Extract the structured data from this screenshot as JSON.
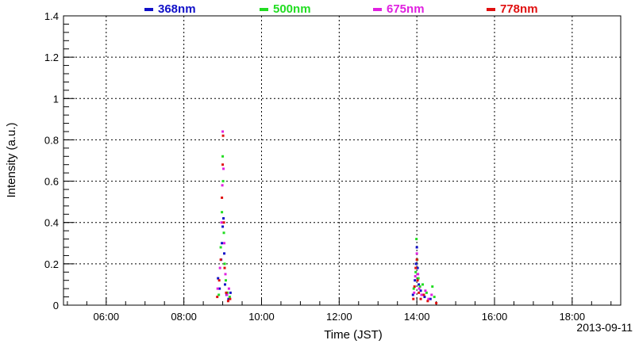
{
  "chart_data": {
    "type": "scatter",
    "title": "",
    "xlabel": "Time (JST)",
    "ylabel": "Intensity (a.u.)",
    "date_label": "2013-09-11",
    "x_unit": "hours (JST clock time)",
    "xlim": [
      4.9,
      19.25
    ],
    "ylim": [
      0,
      1.4
    ],
    "x_ticks": [
      {
        "value": 6,
        "label": "06:00"
      },
      {
        "value": 8,
        "label": "08:00"
      },
      {
        "value": 10,
        "label": "10:00"
      },
      {
        "value": 12,
        "label": "12:00"
      },
      {
        "value": 14,
        "label": "14:00"
      },
      {
        "value": 16,
        "label": "16:00"
      },
      {
        "value": 18,
        "label": "18:00"
      }
    ],
    "y_ticks": [
      {
        "value": 0,
        "label": "0"
      },
      {
        "value": 0.2,
        "label": "0.2"
      },
      {
        "value": 0.4,
        "label": "0.4"
      },
      {
        "value": 0.6,
        "label": "0.6"
      },
      {
        "value": 0.8,
        "label": "0.8"
      },
      {
        "value": 1.0,
        "label": "1"
      },
      {
        "value": 1.2,
        "label": "1.2"
      },
      {
        "value": 1.4,
        "label": "1.4"
      }
    ],
    "grid": true,
    "legend_position": "top",
    "series": [
      {
        "name": "368nm",
        "color": "#1010c8",
        "points": [
          [
            8.88,
            0.13
          ],
          [
            8.92,
            0.08
          ],
          [
            8.96,
            0.22
          ],
          [
            8.98,
            0.3
          ],
          [
            9.0,
            0.38
          ],
          [
            9.02,
            0.42
          ],
          [
            9.04,
            0.25
          ],
          [
            9.06,
            0.1
          ],
          [
            9.1,
            0.05
          ],
          [
            9.15,
            0.03
          ],
          [
            9.2,
            0.06
          ],
          [
            13.9,
            0.05
          ],
          [
            13.95,
            0.12
          ],
          [
            13.98,
            0.2
          ],
          [
            14.0,
            0.28
          ],
          [
            14.02,
            0.18
          ],
          [
            14.05,
            0.1
          ],
          [
            14.1,
            0.07
          ],
          [
            14.2,
            0.04
          ],
          [
            14.35,
            0.03
          ]
        ]
      },
      {
        "name": "500nm",
        "color": "#22dd22",
        "points": [
          [
            8.9,
            0.05
          ],
          [
            8.95,
            0.28
          ],
          [
            8.98,
            0.45
          ],
          [
            9.0,
            0.72
          ],
          [
            9.01,
            0.6
          ],
          [
            9.03,
            0.35
          ],
          [
            9.05,
            0.2
          ],
          [
            9.08,
            0.12
          ],
          [
            9.12,
            0.06
          ],
          [
            9.18,
            0.04
          ],
          [
            13.92,
            0.08
          ],
          [
            13.97,
            0.16
          ],
          [
            13.99,
            0.32
          ],
          [
            14.01,
            0.22
          ],
          [
            14.04,
            0.13
          ],
          [
            14.08,
            0.09
          ],
          [
            14.15,
            0.1
          ],
          [
            14.25,
            0.06
          ],
          [
            14.4,
            0.09
          ],
          [
            14.45,
            0.04
          ]
        ]
      },
      {
        "name": "675nm",
        "color": "#e020e0",
        "points": [
          [
            8.87,
            0.08
          ],
          [
            8.93,
            0.18
          ],
          [
            8.97,
            0.4
          ],
          [
            8.99,
            0.58
          ],
          [
            9.0,
            0.84
          ],
          [
            9.02,
            0.66
          ],
          [
            9.04,
            0.3
          ],
          [
            9.07,
            0.15
          ],
          [
            9.11,
            0.05
          ],
          [
            9.16,
            0.08
          ],
          [
            13.93,
            0.06
          ],
          [
            13.96,
            0.14
          ],
          [
            14.0,
            0.25
          ],
          [
            14.03,
            0.15
          ],
          [
            14.06,
            0.08
          ],
          [
            14.12,
            0.05
          ],
          [
            14.22,
            0.07
          ],
          [
            14.3,
            0.03
          ],
          [
            14.38,
            0.05
          ]
        ]
      },
      {
        "name": "778nm",
        "color": "#e01010",
        "points": [
          [
            8.86,
            0.04
          ],
          [
            8.91,
            0.12
          ],
          [
            8.95,
            0.22
          ],
          [
            8.98,
            0.52
          ],
          [
            9.0,
            0.68
          ],
          [
            9.01,
            0.82
          ],
          [
            9.03,
            0.4
          ],
          [
            9.05,
            0.18
          ],
          [
            9.09,
            0.06
          ],
          [
            9.14,
            0.02
          ],
          [
            9.19,
            0.03
          ],
          [
            13.91,
            0.03
          ],
          [
            13.94,
            0.09
          ],
          [
            13.97,
            0.18
          ],
          [
            14.0,
            0.22
          ],
          [
            14.02,
            0.12
          ],
          [
            14.05,
            0.06
          ],
          [
            14.1,
            0.03
          ],
          [
            14.18,
            0.05
          ],
          [
            14.28,
            0.02
          ],
          [
            14.5,
            0.01
          ]
        ]
      }
    ]
  }
}
